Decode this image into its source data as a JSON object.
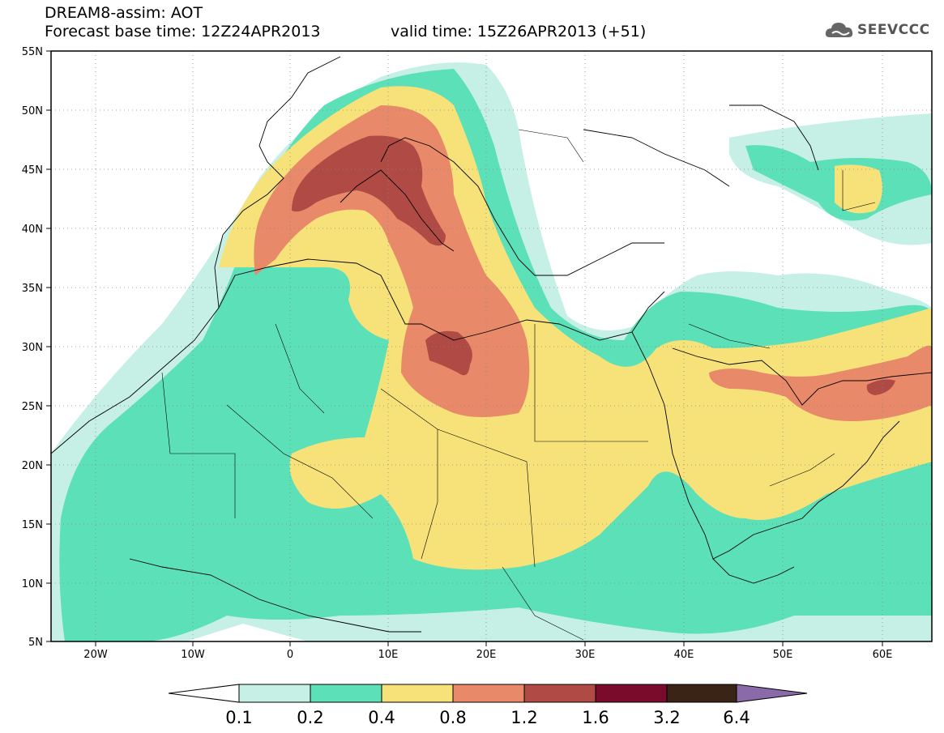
{
  "header": {
    "title_line1": "DREAM8-assim: AOT",
    "title_line2": "Forecast base time: 12Z24APR2013",
    "valid_time": "valid time: 15Z26APR2013 (+51)"
  },
  "logo": {
    "text": "SEEVCCC",
    "icon": "cloud-icon"
  },
  "map": {
    "lon_ticks": [
      "20W",
      "10W",
      "0",
      "10E",
      "20E",
      "30E",
      "40E",
      "50E",
      "60E"
    ],
    "lat_ticks": [
      "55N",
      "50N",
      "45N",
      "40N",
      "35N",
      "30N",
      "25N",
      "20N",
      "15N",
      "10N",
      "5N"
    ],
    "lon_range": [
      -25,
      65
    ],
    "lat_range": [
      5,
      55
    ],
    "grid": "dotted"
  },
  "colorbar": {
    "labels": [
      "0.1",
      "0.2",
      "0.4",
      "0.8",
      "1.2",
      "1.6",
      "3.2",
      "6.4"
    ],
    "colors": [
      "#ffffff",
      "#c6f0e6",
      "#5ce0b8",
      "#f7e27a",
      "#e8896a",
      "#b04a44",
      "#7a0b2b",
      "#3a2415",
      "#8a6aa8"
    ]
  }
}
